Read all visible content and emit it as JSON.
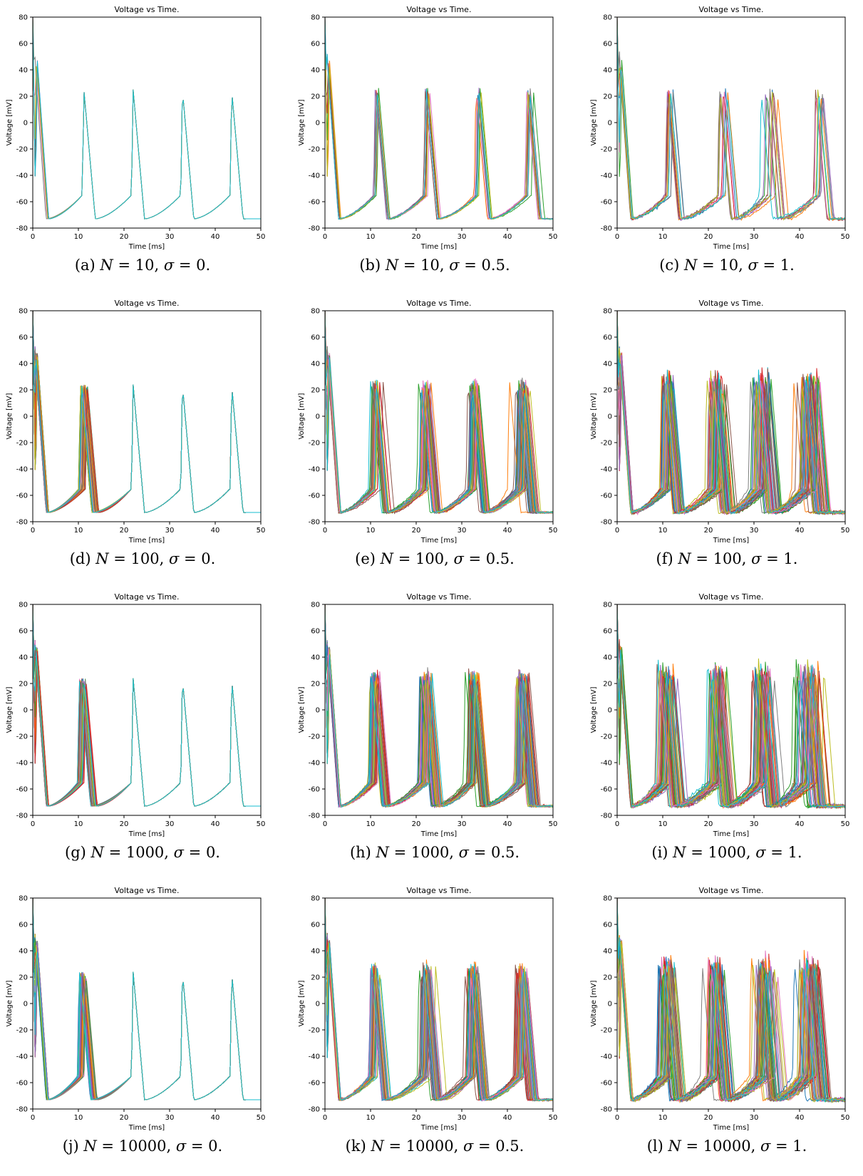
{
  "common": {
    "type": "line",
    "title": "Voltage vs Time.",
    "xlabel": "Time [ms]",
    "ylabel": "Voltage [mV]",
    "xlim": [
      0,
      50
    ],
    "ylim": [
      -80,
      80
    ],
    "xticks": [
      0,
      10,
      20,
      30,
      40,
      50
    ],
    "yticks": [
      -80,
      -60,
      -40,
      -20,
      0,
      20,
      40,
      60,
      80
    ],
    "palette": [
      "#1f77b4",
      "#ff7f0e",
      "#2ca02c",
      "#d62728",
      "#9467bd",
      "#8c564b",
      "#e377c2",
      "#7f7f7f",
      "#bcbd22",
      "#17becf"
    ]
  },
  "chart_data": [
    {
      "label": "(a)",
      "N": "10",
      "sigma": "0",
      "traces": 10,
      "spike_times": [
        0.4,
        11.2,
        22.0,
        32.8,
        43.6
      ],
      "spread": 0,
      "peak": 25
    },
    {
      "label": "(b)",
      "N": "10",
      "sigma": "0.5",
      "traces": 10,
      "spike_times": [
        0.4,
        11.2,
        22.2,
        33.4,
        44.6
      ],
      "spread": 0.35,
      "peak": 25
    },
    {
      "label": "(c)",
      "N": "10",
      "sigma": "1",
      "traces": 10,
      "spike_times": [
        0.4,
        11.0,
        22.5,
        33.0,
        44.2
      ],
      "spread": 0.8,
      "peak": 26
    },
    {
      "label": "(d)",
      "N": "100",
      "sigma": "0",
      "traces": 100,
      "spike_times": [
        0.4,
        10.8,
        22.0,
        32.8,
        43.6
      ],
      "spread": 0,
      "peak": 24
    },
    {
      "label": "(e)",
      "N": "100",
      "sigma": "0.5",
      "traces": 100,
      "spike_times": [
        0.4,
        10.8,
        21.8,
        32.4,
        43.0
      ],
      "spread": 0.5,
      "peak": 26
    },
    {
      "label": "(f)",
      "N": "100",
      "sigma": "1",
      "traces": 100,
      "spike_times": [
        0.4,
        10.5,
        21.0,
        31.2,
        41.4
      ],
      "spread": 0.9,
      "peak": 30
    },
    {
      "label": "(g)",
      "N": "1000",
      "sigma": "0",
      "traces": 1000,
      "spike_times": [
        0.4,
        10.5,
        22.0,
        32.8,
        43.6
      ],
      "spread": 0,
      "peak": 24
    },
    {
      "label": "(h)",
      "N": "1000",
      "sigma": "0.5",
      "traces": 1000,
      "spike_times": [
        0.4,
        10.5,
        21.8,
        32.3,
        42.8
      ],
      "spread": 0.55,
      "peak": 28
    },
    {
      "label": "(i)",
      "N": "1000",
      "sigma": "1",
      "traces": 1000,
      "spike_times": [
        0.4,
        10.3,
        21.0,
        31.2,
        41.4
      ],
      "spread": 1.0,
      "peak": 32
    },
    {
      "label": "(j)",
      "N": "10000",
      "sigma": "0",
      "traces": 10000,
      "spike_times": [
        0.4,
        10.5,
        22.0,
        32.8,
        43.6
      ],
      "spread": 0,
      "peak": 24
    },
    {
      "label": "(k)",
      "N": "10000",
      "sigma": "0.5",
      "traces": 10000,
      "spike_times": [
        0.4,
        10.5,
        21.8,
        32.3,
        42.8
      ],
      "spread": 0.55,
      "peak": 28
    },
    {
      "label": "(l)",
      "N": "10000",
      "sigma": "1",
      "traces": 10000,
      "spike_times": [
        0.4,
        10.3,
        21.0,
        31.2,
        41.4
      ],
      "spread": 1.0,
      "peak": 32
    }
  ]
}
